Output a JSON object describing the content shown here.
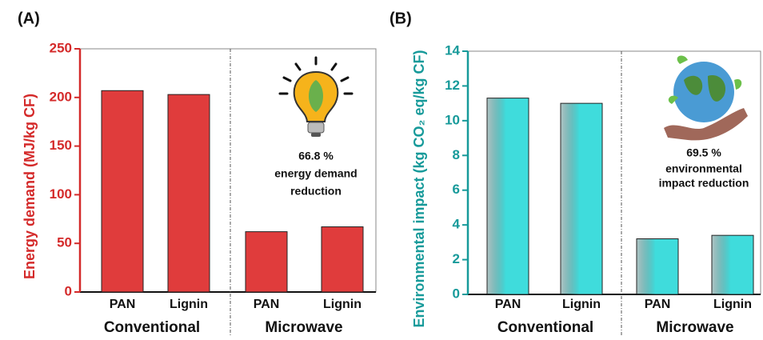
{
  "chart_data": [
    {
      "type": "bar",
      "panel_label": "(A)",
      "y_label": "Energy demand (MJ/kg CF)",
      "categories": [
        "PAN",
        "Lignin",
        "PAN",
        "Lignin"
      ],
      "groups": [
        "Conventional",
        "Microwave"
      ],
      "values": [
        207,
        203,
        62,
        67
      ],
      "color": "#e03c3c",
      "axis_color": "#d42a2a",
      "ylim": [
        0,
        250
      ],
      "yticks": [
        0,
        50,
        100,
        150,
        200,
        250
      ],
      "annotation": [
        "66.8 %",
        "energy demand",
        "reduction"
      ]
    },
    {
      "type": "bar",
      "panel_label": "(B)",
      "y_label": "Environmental impact (kg CO₂ eq/kg CF)",
      "categories": [
        "PAN",
        "Lignin",
        "PAN",
        "Lignin"
      ],
      "groups": [
        "Conventional",
        "Microwave"
      ],
      "values": [
        11.3,
        11.0,
        3.2,
        3.4
      ],
      "color": "#3fdcdc",
      "axis_color": "#179a9a",
      "ylim": [
        0,
        14
      ],
      "yticks": [
        0,
        2,
        4,
        6,
        8,
        10,
        12,
        14
      ],
      "annotation": [
        "69.5 %",
        "environmental",
        "impact reduction"
      ]
    }
  ]
}
